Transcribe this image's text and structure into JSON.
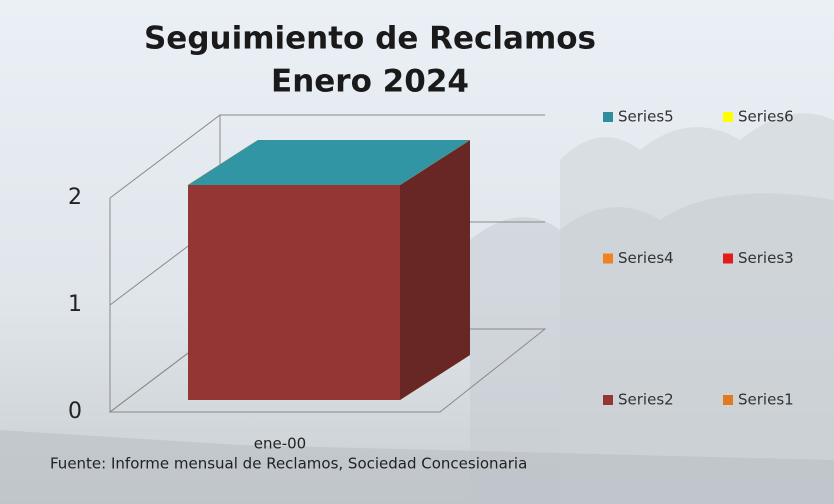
{
  "chart_data": {
    "type": "bar3d_stacked",
    "title": "Seguimiento de Reclamos",
    "subtitle": "Enero 2024",
    "categories": [
      "ene-00"
    ],
    "series": [
      {
        "name": "Series5",
        "color": "#2f8e9c",
        "values": [
          0
        ]
      },
      {
        "name": "Series6",
        "color": "#ffff00",
        "values": [
          0
        ]
      },
      {
        "name": "Series4",
        "color": "#f08224",
        "values": [
          0
        ]
      },
      {
        "name": "Series3",
        "color": "#e31b1b",
        "values": [
          0
        ]
      },
      {
        "name": "Series2",
        "color": "#943634",
        "values": [
          2
        ]
      },
      {
        "name": "Series1",
        "color": "#e3781e",
        "values": [
          0
        ]
      }
    ],
    "ylim": [
      0,
      2
    ],
    "yticks": [
      0,
      1,
      2
    ],
    "grid": true,
    "source": "Fuente: Informe mensual de Reclamos, Sociedad Concesionaria"
  }
}
